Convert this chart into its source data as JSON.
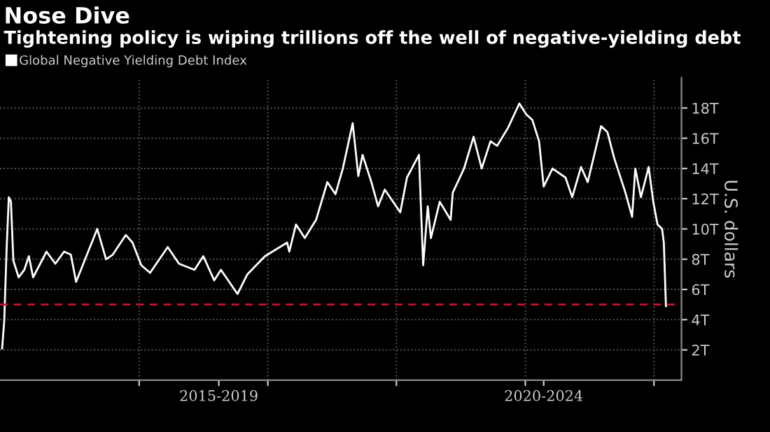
{
  "chart_data": {
    "type": "line",
    "title": "Nose Dive",
    "subtitle": "Tightening policy is wiping trillions off the well of negative-yielding debt",
    "ylabel": "U.S. dollars",
    "legend": "top left",
    "grid": true,
    "marker": "none",
    "line_style": "solid",
    "x": [
      "2016-12-08",
      "2016-12-14",
      "2016-12-21",
      "2016-12-27",
      "2017-01-02",
      "2017-01-09",
      "2017-01-24",
      "2017-02-09",
      "2017-02-22",
      "2017-03-06",
      "2017-04-13",
      "2017-05-08",
      "2017-06-02",
      "2017-06-21",
      "2017-07-06",
      "2017-08-04",
      "2017-09-04",
      "2017-09-29",
      "2017-10-18",
      "2017-11-24",
      "2017-12-13",
      "2018-01-07",
      "2018-02-01",
      "2018-03-23",
      "2018-04-24",
      "2018-06-07",
      "2018-07-02",
      "2018-08-02",
      "2018-08-21",
      "2018-10-07",
      "2018-11-04",
      "2018-12-24",
      "2019-02-25",
      "2019-03-03",
      "2019-03-22",
      "2019-04-16",
      "2019-05-18",
      "2019-06-19",
      "2019-07-12",
      "2019-08-02",
      "2019-08-30",
      "2019-09-15",
      "2019-09-27",
      "2019-10-22",
      "2019-11-10",
      "2019-11-29",
      "2020-01-12",
      "2020-01-31",
      "2020-03-05",
      "2020-03-17",
      "2020-03-30",
      "2020-04-08",
      "2020-05-03",
      "2020-06-03",
      "2020-06-09",
      "2020-07-11",
      "2020-08-07",
      "2020-08-30",
      "2020-09-24",
      "2020-10-13",
      "2020-11-13",
      "2020-12-15",
      "2021-01-03",
      "2021-01-21",
      "2021-02-09",
      "2021-02-22",
      "2021-03-19",
      "2021-04-25",
      "2021-05-14",
      "2021-06-08",
      "2021-06-27",
      "2021-08-04",
      "2021-08-22",
      "2021-09-10",
      "2021-10-12",
      "2021-10-31",
      "2021-11-09",
      "2021-11-25",
      "2021-12-17",
      "2021-12-30",
      "2022-01-11",
      "2022-01-24",
      "2022-01-29",
      "2022-02-04"
    ],
    "series": [
      {
        "name": "Global Negative Yielding Debt Index",
        "color": "#ffffff",
        "values": [
          2.1,
          3.9,
          8.8,
          12.1,
          11.8,
          7.9,
          6.8,
          7.3,
          8.2,
          6.8,
          8.5,
          7.7,
          8.5,
          8.3,
          6.5,
          8.2,
          10.0,
          8.0,
          8.3,
          9.6,
          9.1,
          7.6,
          7.1,
          8.8,
          7.7,
          7.3,
          8.2,
          6.6,
          7.3,
          5.7,
          7.0,
          8.2,
          9.1,
          8.5,
          10.3,
          9.4,
          10.6,
          13.1,
          12.3,
          14.0,
          17.0,
          13.5,
          14.9,
          13.1,
          11.5,
          12.6,
          11.1,
          13.4,
          14.9,
          7.6,
          11.5,
          9.4,
          11.8,
          10.6,
          12.4,
          14.0,
          16.1,
          14.0,
          15.8,
          15.5,
          16.7,
          18.3,
          17.6,
          17.2,
          15.8,
          12.8,
          14.0,
          13.4,
          12.1,
          14.1,
          13.1,
          16.8,
          16.4,
          14.7,
          12.4,
          10.8,
          14.0,
          12.1,
          14.1,
          11.8,
          10.3,
          10.0,
          9.1,
          4.9
        ]
      }
    ],
    "xlim": [
      "2016-12-02",
      "2022-03-20"
    ],
    "xticks": [
      {
        "value": "2018-01-01",
        "label": null
      },
      {
        "value": "2018-08-15",
        "label": "2015-2019"
      },
      {
        "value": "2019-01-01",
        "label": null
      },
      {
        "value": "2020-01-01",
        "label": null
      },
      {
        "value": "2021-01-01",
        "label": null
      },
      {
        "value": "2021-02-22",
        "label": "2020-2024"
      },
      {
        "value": "2022-01-01",
        "label": null
      }
    ],
    "ylim": [
      0,
      20
    ],
    "yticks": [
      {
        "value": 2,
        "label": "2T"
      },
      {
        "value": 4,
        "label": "4T"
      },
      {
        "value": 6,
        "label": "6T"
      },
      {
        "value": 8,
        "label": "8T"
      },
      {
        "value": 10,
        "label": "10T"
      },
      {
        "value": 12,
        "label": "12T"
      },
      {
        "value": 14,
        "label": "14T"
      },
      {
        "value": 16,
        "label": "16T"
      },
      {
        "value": 18,
        "label": "18T"
      }
    ],
    "ref_lines": [
      {
        "axis": "y",
        "value": 5,
        "label": null,
        "color": "#c8102e",
        "line_style": "dashed"
      }
    ]
  }
}
